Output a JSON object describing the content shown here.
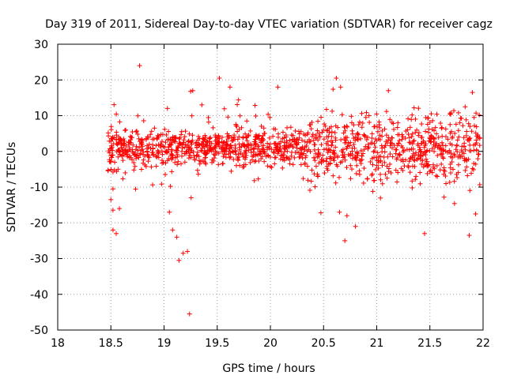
{
  "chart_data": {
    "type": "scatter",
    "title": "Day 319 of 2011, Sidereal Day-to-day VTEC variation (SDTVAR) for receiver cagz",
    "xlabel": "GPS time / hours",
    "ylabel": "SDTVAR / TECUs",
    "xlim": [
      18,
      22
    ],
    "ylim": [
      -50,
      30
    ],
    "x_ticks": [
      18,
      18.5,
      19,
      19.5,
      20,
      20.5,
      21,
      21.5,
      22
    ],
    "x_tick_labels": [
      "18",
      "18.5",
      "19",
      "19.5",
      "20",
      "20.5",
      "21",
      "21.5",
      "22"
    ],
    "y_ticks": [
      -50,
      -40,
      -30,
      -20,
      -10,
      0,
      10,
      20,
      30
    ],
    "y_tick_labels": [
      "-50",
      "-40",
      "-30",
      "-20",
      "-10",
      "0",
      "10",
      "20",
      "30"
    ],
    "grid": true,
    "marker": "+",
    "color": "#ff0000",
    "series": [
      {
        "name": "cagz",
        "outliers": [
          [
            18.77,
            24
          ],
          [
            19.52,
            20.5
          ],
          [
            19.62,
            18
          ],
          [
            20.07,
            18
          ],
          [
            20.62,
            20.5
          ],
          [
            20.66,
            18
          ],
          [
            21.11,
            17
          ],
          [
            21.9,
            16.5
          ],
          [
            19.27,
            17
          ],
          [
            19.25,
            16.8
          ],
          [
            18.55,
            -23
          ],
          [
            18.52,
            -22
          ],
          [
            18.58,
            -16
          ],
          [
            19.08,
            -22
          ],
          [
            19.12,
            -24
          ],
          [
            19.14,
            -30.5
          ],
          [
            19.18,
            -28.5
          ],
          [
            19.22,
            -28
          ],
          [
            19.24,
            -45.5
          ],
          [
            20.7,
            -25
          ],
          [
            20.8,
            -21
          ],
          [
            21.45,
            -23
          ],
          [
            21.87,
            -23.5
          ],
          [
            21.93,
            -17.5
          ],
          [
            18.5,
            -13.5
          ],
          [
            18.52,
            -10.5
          ],
          [
            20.65,
            -17
          ],
          [
            20.72,
            -18
          ],
          [
            19.05,
            -17
          ]
        ],
        "core_band": {
          "x_start": 18.47,
          "x_end": 21.97,
          "center": 1,
          "spread": 4
        }
      }
    ]
  }
}
